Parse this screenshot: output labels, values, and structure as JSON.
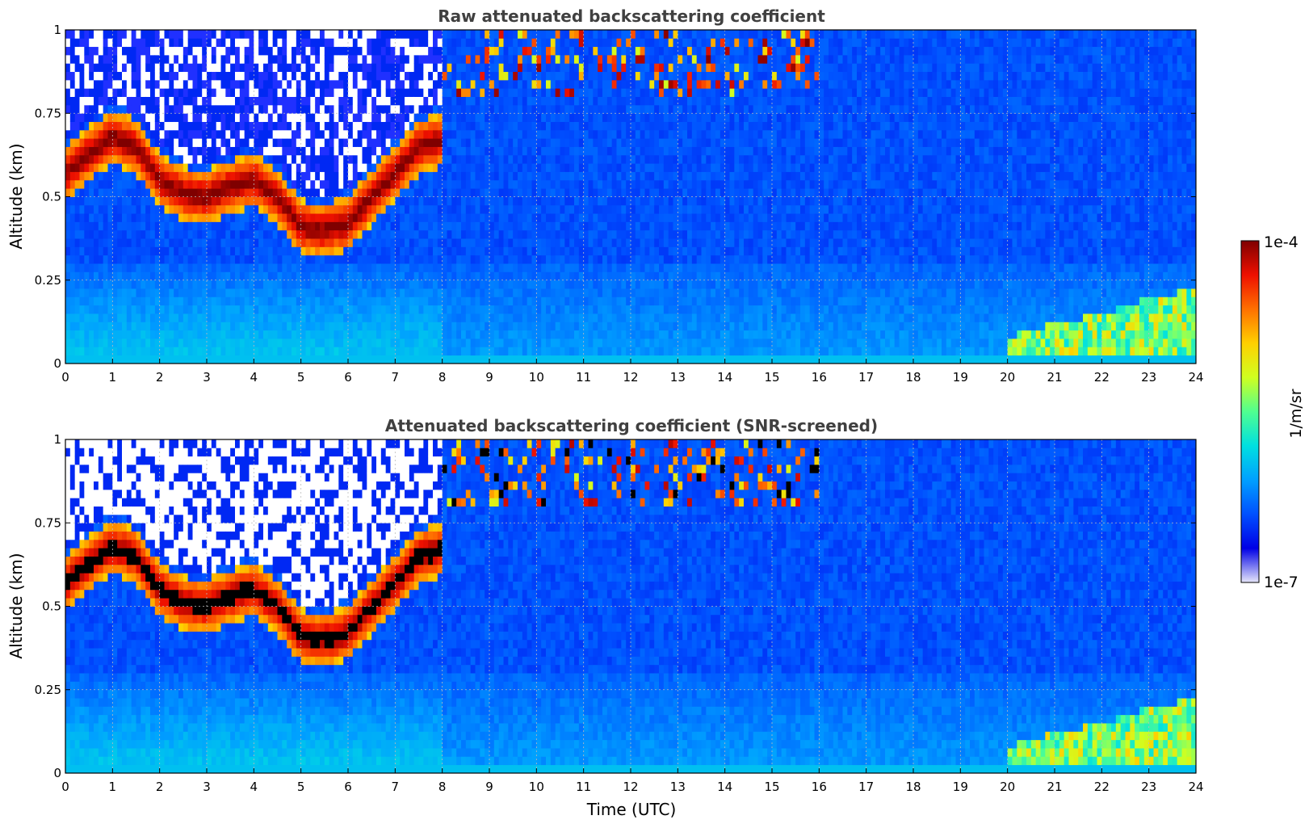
{
  "chart_data": [
    {
      "type": "heatmap",
      "title": "Raw attenuated backscattering coefficient",
      "xlabel": "",
      "ylabel": "Altitude (km)",
      "xlim": [
        0,
        24
      ],
      "ylim": [
        0,
        1
      ],
      "x_ticks": [
        "0",
        "1",
        "2",
        "3",
        "4",
        "5",
        "6",
        "7",
        "8",
        "9",
        "10",
        "11",
        "12",
        "13",
        "14",
        "15",
        "16",
        "17",
        "18",
        "19",
        "20",
        "21",
        "22",
        "23",
        "24"
      ],
      "y_ticks": [
        "0",
        "0.25",
        "0.5",
        "0.75",
        "1"
      ],
      "grid": true,
      "screened": false,
      "cloud_layer_top_km": [
        [
          0,
          0.62
        ],
        [
          0.5,
          0.68
        ],
        [
          1,
          0.73
        ],
        [
          1.5,
          0.7
        ],
        [
          2,
          0.6
        ],
        [
          2.5,
          0.56
        ],
        [
          3,
          0.55
        ],
        [
          3.5,
          0.58
        ],
        [
          4,
          0.6
        ],
        [
          4.5,
          0.55
        ],
        [
          5,
          0.46
        ],
        [
          5.5,
          0.45
        ],
        [
          6,
          0.47
        ],
        [
          6.5,
          0.55
        ],
        [
          7,
          0.62
        ],
        [
          7.5,
          0.7
        ],
        [
          8,
          0.72
        ]
      ],
      "aerosol_layer_top_km": [
        [
          20,
          0.08
        ],
        [
          21,
          0.12
        ],
        [
          22,
          0.15
        ],
        [
          23,
          0.2
        ],
        [
          24,
          0.22
        ]
      ]
    },
    {
      "type": "heatmap",
      "title": "Attenuated backscattering coefficient (SNR-screened)",
      "xlabel": "Time (UTC)",
      "ylabel": "Altitude (km)",
      "xlim": [
        0,
        24
      ],
      "ylim": [
        0,
        1
      ],
      "x_ticks": [
        "0",
        "1",
        "2",
        "3",
        "4",
        "5",
        "6",
        "7",
        "8",
        "9",
        "10",
        "11",
        "12",
        "13",
        "14",
        "15",
        "16",
        "17",
        "18",
        "19",
        "20",
        "21",
        "22",
        "23",
        "24"
      ],
      "y_ticks": [
        "0",
        "0.25",
        "0.5",
        "0.75",
        "1"
      ],
      "grid": true,
      "screened": true,
      "cloud_layer_top_km": [
        [
          0,
          0.62
        ],
        [
          0.5,
          0.68
        ],
        [
          1,
          0.73
        ],
        [
          1.5,
          0.7
        ],
        [
          2,
          0.6
        ],
        [
          2.5,
          0.56
        ],
        [
          3,
          0.55
        ],
        [
          3.5,
          0.58
        ],
        [
          4,
          0.6
        ],
        [
          4.5,
          0.55
        ],
        [
          5,
          0.46
        ],
        [
          5.5,
          0.45
        ],
        [
          6,
          0.47
        ],
        [
          6.5,
          0.55
        ],
        [
          7,
          0.62
        ],
        [
          7.5,
          0.7
        ],
        [
          8,
          0.72
        ]
      ],
      "aerosol_layer_top_km": [
        [
          20,
          0.08
        ],
        [
          21,
          0.12
        ],
        [
          22,
          0.15
        ],
        [
          23,
          0.2
        ],
        [
          24,
          0.22
        ]
      ]
    }
  ],
  "colorbar": {
    "label": "1/m/sr",
    "max_label": "1e-4",
    "min_label": "1e-7",
    "colormap": [
      "#e6e6fa",
      "#0000e6",
      "#0050ff",
      "#00a0ff",
      "#00e0e0",
      "#50ff90",
      "#d0ff20",
      "#ffd000",
      "#ff7000",
      "#ee1000",
      "#7f0000"
    ]
  }
}
